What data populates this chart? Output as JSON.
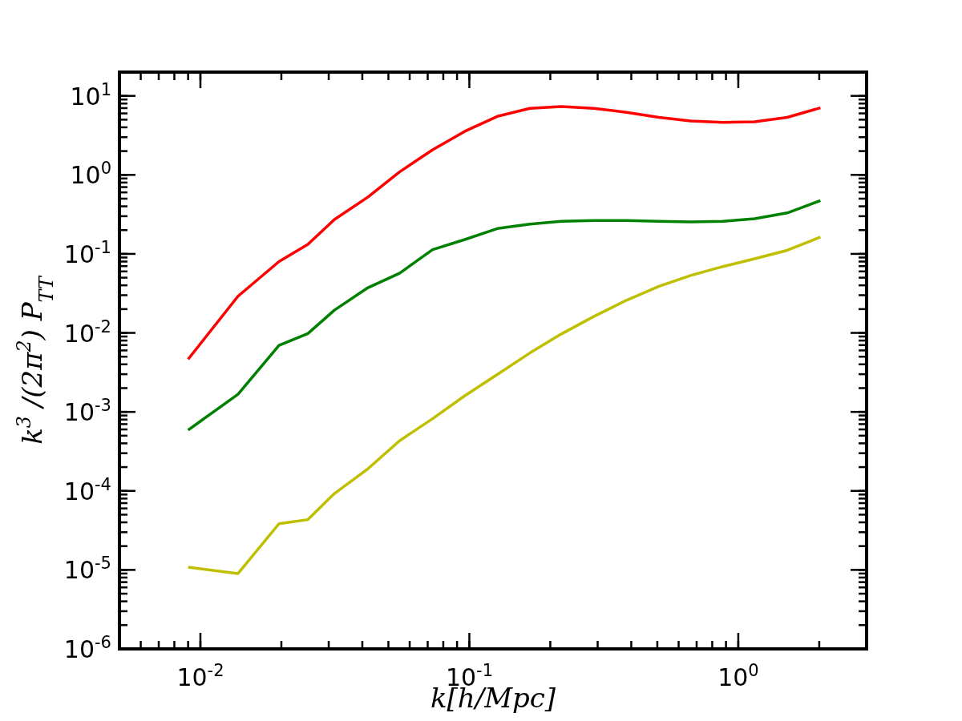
{
  "chart_data": {
    "type": "line",
    "xlabel": "k[h/Mpc]",
    "ylabel": "k$^{3}$ /(2π$^{2}$) P$_{TT}$",
    "log": "xy",
    "grid": false,
    "marker": "none",
    "line_style": "solid",
    "xlim": [
      0.005,
      3
    ],
    "ylim": [
      1e-06,
      20
    ],
    "xticks": [
      {
        "value": 0.01,
        "label": "10$^{-2}$"
      },
      {
        "value": 0.1,
        "label": "10$^{-1}$"
      },
      {
        "value": 1,
        "label": "10$^{0}$"
      }
    ],
    "yticks": [
      {
        "value": 1e-06,
        "label": "10$^{-6}$"
      },
      {
        "value": 1e-05,
        "label": "10$^{-5}$"
      },
      {
        "value": 0.0001,
        "label": "10$^{-4}$"
      },
      {
        "value": 0.001,
        "label": "10$^{-3}$"
      },
      {
        "value": 0.01,
        "label": "10$^{-2}$"
      },
      {
        "value": 0.1,
        "label": "10$^{-1}$"
      },
      {
        "value": 1,
        "label": "10$^{0}$"
      },
      {
        "value": 10,
        "label": "10$^{1}$"
      }
    ],
    "x": [
      0.009,
      0.0138,
      0.0196,
      0.0251,
      0.0315,
      0.042,
      0.055,
      0.073,
      0.0962,
      0.127,
      0.168,
      0.22,
      0.29,
      0.384,
      0.507,
      0.665,
      0.877,
      1.15,
      1.52,
      2.02
    ],
    "series": [
      {
        "color": "#ff0000",
        "values": [
          0.00463,
          0.0291,
          0.08,
          0.132,
          0.272,
          0.525,
          1.09,
          2.08,
          3.56,
          5.5,
          6.96,
          7.34,
          6.96,
          6.19,
          5.35,
          4.82,
          4.63,
          4.7,
          5.35,
          7.06
        ]
      },
      {
        "color": "#008000",
        "values": [
          0.000589,
          0.00167,
          0.00695,
          0.0098,
          0.0194,
          0.0374,
          0.0569,
          0.113,
          0.152,
          0.209,
          0.238,
          0.258,
          0.265,
          0.265,
          0.258,
          0.254,
          0.258,
          0.279,
          0.33,
          0.472
        ]
      },
      {
        "color": "#bfbf00",
        "values": [
          1.08e-05,
          9e-06,
          3.84e-05,
          4.33e-05,
          9.25e-05,
          0.000191,
          0.000431,
          0.00082,
          0.0016,
          0.00297,
          0.00557,
          0.0097,
          0.0161,
          0.0259,
          0.0388,
          0.0533,
          0.0692,
          0.0867,
          0.111,
          0.163
        ]
      }
    ]
  }
}
